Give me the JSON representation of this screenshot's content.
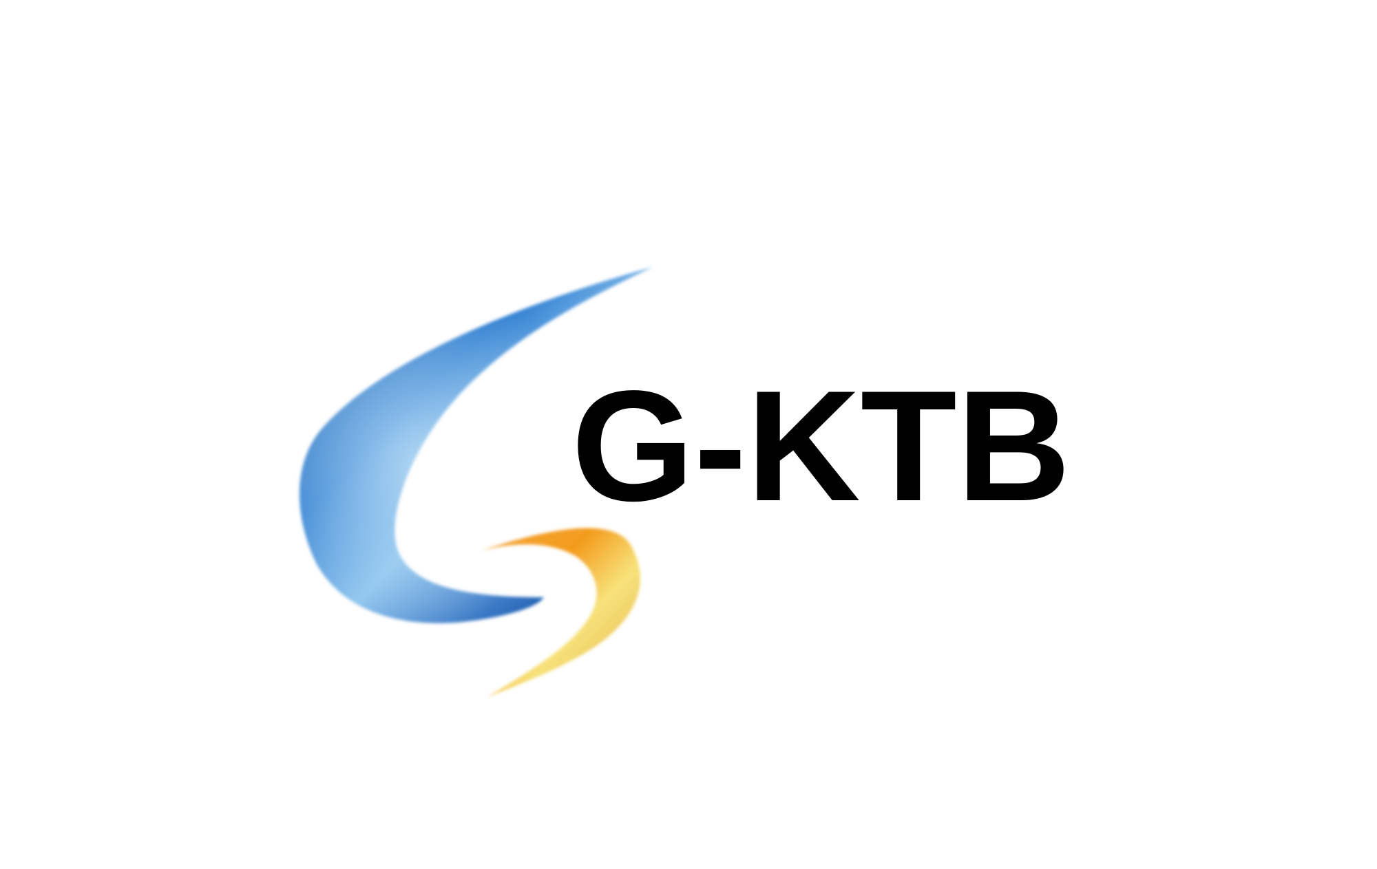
{
  "logo": {
    "wordmark": "G-KTB",
    "symbol_icon": "swoosh-s-icon",
    "colors": {
      "wordmark": "#000000",
      "blue_dark": "#1f5fa8",
      "blue_mid": "#3c8fd8",
      "blue_light": "#8ec4ee",
      "orange": "#f39c1e",
      "yellow": "#f7e27a",
      "background": "#ffffff"
    }
  }
}
